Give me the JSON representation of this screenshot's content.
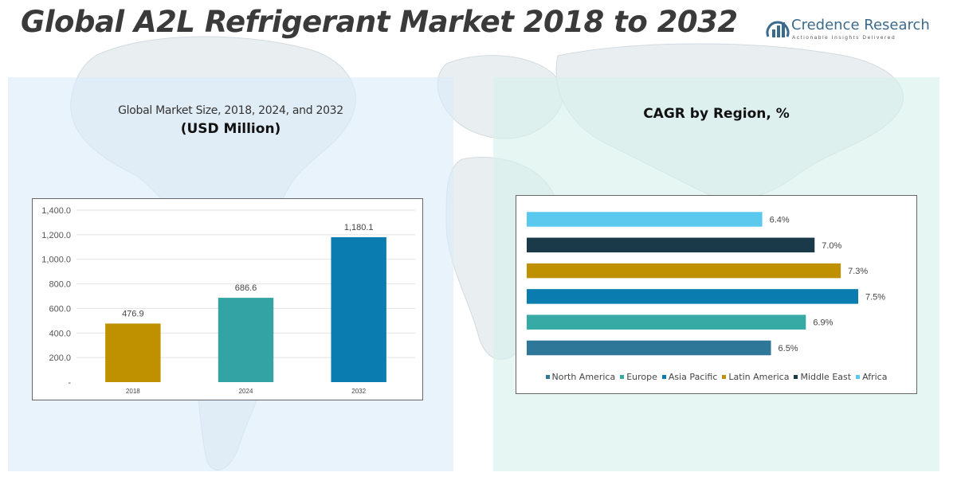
{
  "title": "Global A2L Refrigerant Market 2018 to 2032",
  "logo": {
    "name": "Credence Research",
    "tagline": "Actionable Insights Delivered"
  },
  "chart_data": [
    {
      "type": "bar",
      "title": "Global Market Size, 2018, 2024, and 2032",
      "subtitle": "(USD Million)",
      "categories": [
        "2018",
        "2024",
        "2032"
      ],
      "values": [
        476.9,
        686.6,
        1180.1
      ],
      "value_labels": [
        "476.9",
        "686.6",
        "1,180.1"
      ],
      "colors": [
        "#bf9000",
        "#33a3a3",
        "#0a7cb0"
      ],
      "ylim": [
        0,
        1400
      ],
      "yticks": [
        0,
        200,
        400,
        600,
        800,
        1000,
        1200,
        1400
      ],
      "ytick_labels": [
        "-",
        "200.0",
        "400.0",
        "600.0",
        "800.0",
        "1,000.0",
        "1,200.0",
        "1,400.0"
      ],
      "grid": true
    },
    {
      "type": "bar",
      "orientation": "horizontal",
      "title": "CAGR by Region, %",
      "categories": [
        "North America",
        "Europe",
        "Asia Pacific",
        "Latin America",
        "Middle East",
        "Africa"
      ],
      "values": [
        6.5,
        6.9,
        7.5,
        7.3,
        7.0,
        6.4
      ],
      "value_labels": [
        "6.5%",
        "6.9%",
        "7.5%",
        "7.3%",
        "7.0%",
        "6.4%"
      ],
      "colors": [
        "#2e7798",
        "#38aaa6",
        "#0a7cb0",
        "#bf9000",
        "#1a3a4a",
        "#5bc8ee"
      ],
      "xlim": [
        3.7,
        7.5
      ],
      "legend_position": "bottom"
    }
  ]
}
